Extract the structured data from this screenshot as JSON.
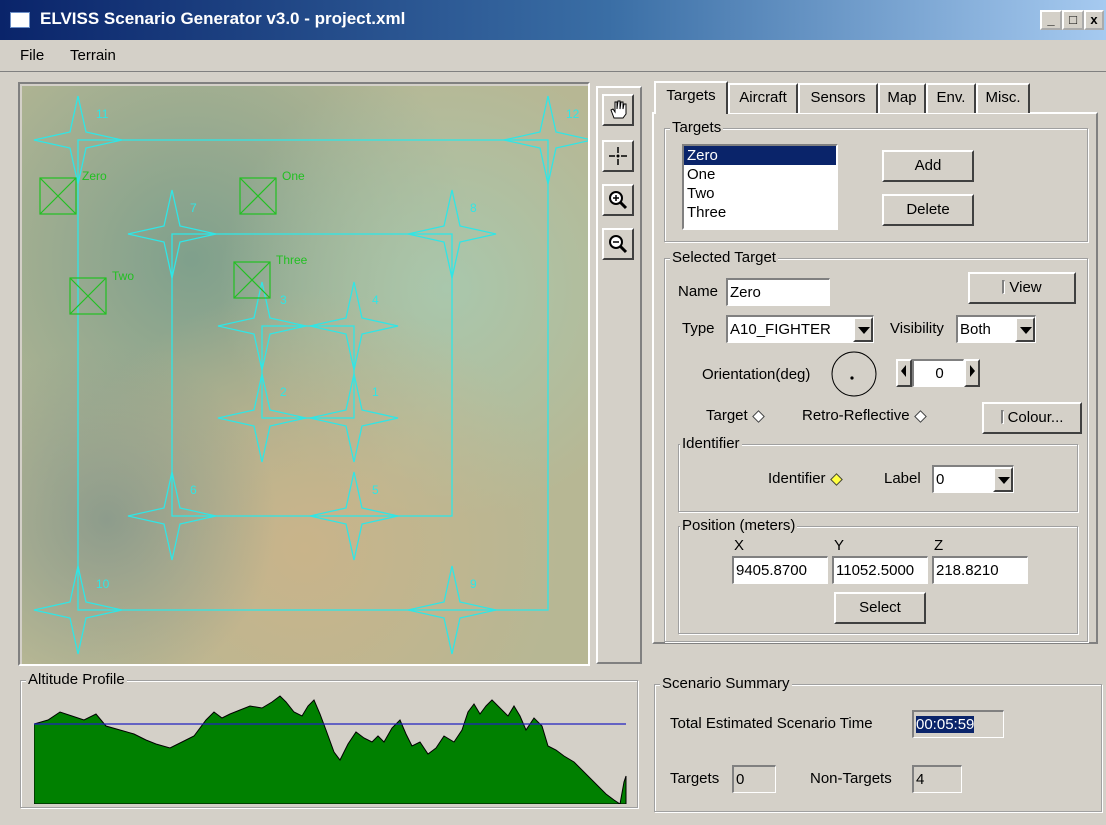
{
  "window": {
    "title": "ELVISS Scenario Generator v3.0 - project.xml"
  },
  "menu": {
    "file": "File",
    "terrain": "Terrain"
  },
  "map": {
    "labels": [
      "11",
      "12",
      "7",
      "8",
      "3",
      "4",
      "2",
      "1",
      "6",
      "5",
      "10",
      "9"
    ],
    "targets": [
      "Zero",
      "One",
      "Two",
      "Three"
    ]
  },
  "tools": [
    "pan-icon",
    "move-icon",
    "zoom-in-icon",
    "zoom-out-icon"
  ],
  "tabs": [
    "Targets",
    "Aircraft",
    "Sensors",
    "Map",
    "Env.",
    "Misc."
  ],
  "targets_group": {
    "legend": "Targets",
    "items": [
      "Zero",
      "One",
      "Two",
      "Three"
    ],
    "selected_index": 0,
    "add": "Add",
    "delete": "Delete"
  },
  "selected_target": {
    "legend": "Selected Target",
    "name_label": "Name",
    "name_value": "Zero",
    "view": "View",
    "type_label": "Type",
    "type_value": "A10_FIGHTER",
    "visibility_label": "Visibility",
    "visibility_value": "Both",
    "orientation_label": "Orientation(deg)",
    "orientation_value": "0",
    "target_label": "Target",
    "retro_label": "Retro-Reflective",
    "colour": "Colour...",
    "identifier_legend": "Identifier",
    "identifier_label": "Identifier",
    "label_label": "Label",
    "label_value": "0",
    "position_legend": "Position (meters)",
    "x_label": "X",
    "y_label": "Y",
    "z_label": "Z",
    "x_value": "9405.8700",
    "y_value": "11052.5000",
    "z_value": "218.8210",
    "select": "Select"
  },
  "altitude": {
    "legend": "Altitude Profile"
  },
  "summary": {
    "legend": "Scenario Summary",
    "time_label": "Total Estimated Scenario Time",
    "time_value": "00:05:59",
    "targets_label": "Targets",
    "targets_value": "0",
    "nontargets_label": "Non-Targets",
    "nontargets_value": "4"
  },
  "colors": {
    "accent": "#0a246a",
    "wire": "#2fe6e6",
    "target": "#22c022",
    "terrain": "#008000",
    "profile_line": "#2020c0"
  }
}
